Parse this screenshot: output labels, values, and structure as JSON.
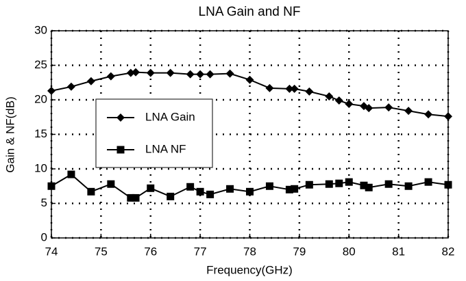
{
  "chart_data": {
    "type": "line",
    "title": "LNA Gain and NF",
    "xlabel": "Frequency(GHz)",
    "ylabel": "Gain & NF(dB)",
    "x": [
      74.0,
      74.4,
      74.8,
      75.2,
      75.6,
      75.7,
      76.0,
      76.4,
      76.8,
      77.0,
      77.2,
      77.6,
      78.0,
      78.4,
      78.8,
      78.9,
      79.2,
      79.6,
      79.8,
      80.0,
      80.3,
      80.4,
      80.8,
      81.2,
      81.6,
      82.0
    ],
    "series": [
      {
        "name": "LNA Gain",
        "color": "#000000",
        "marker": "diamond",
        "values": [
          21.3,
          21.9,
          22.7,
          23.4,
          23.9,
          24.0,
          23.9,
          23.9,
          23.7,
          23.7,
          23.7,
          23.8,
          22.9,
          21.7,
          21.6,
          21.6,
          21.2,
          20.5,
          19.9,
          19.4,
          19.1,
          18.8,
          18.9,
          18.4,
          17.9,
          17.6
        ]
      },
      {
        "name": "LNA NF",
        "color": "#000000",
        "marker": "square",
        "values": [
          7.5,
          9.2,
          6.7,
          7.8,
          5.8,
          5.8,
          7.2,
          6.0,
          7.4,
          6.7,
          6.3,
          7.1,
          6.7,
          7.5,
          7.0,
          7.1,
          7.7,
          7.8,
          7.9,
          8.1,
          7.6,
          7.3,
          7.8,
          7.5,
          8.1,
          7.7
        ]
      }
    ],
    "xlim": [
      74,
      82
    ],
    "xticks": [
      74,
      75,
      76,
      77,
      78,
      79,
      80,
      81,
      82
    ],
    "ylim": [
      0,
      30
    ],
    "yticks": [
      0,
      5,
      10,
      15,
      20,
      25,
      30
    ],
    "grid": true,
    "legend_position": "center-left"
  }
}
